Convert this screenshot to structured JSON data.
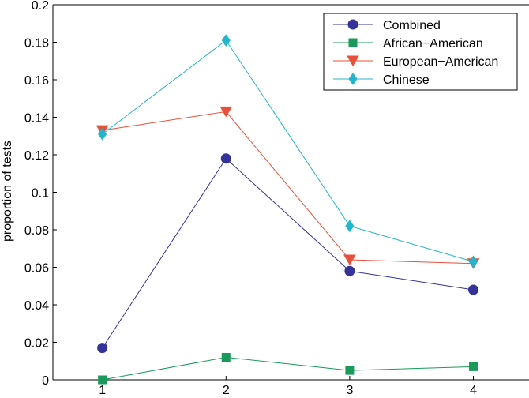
{
  "chart_data": {
    "type": "line",
    "title": "",
    "xlabel": "",
    "ylabel": "proportion of tests",
    "x": [
      1,
      2,
      3,
      4
    ],
    "xlim": [
      0.6,
      4.45
    ],
    "ylim": [
      0,
      0.2
    ],
    "xticks": [
      "1",
      "2",
      "3",
      "4"
    ],
    "yticks": [
      "0",
      "0.02",
      "0.04",
      "0.06",
      "0.08",
      "0.1",
      "0.12",
      "0.14",
      "0.16",
      "0.18",
      "0.2"
    ],
    "grid": false,
    "legend_position": "top-right",
    "series": [
      {
        "name": "Combined",
        "values": [
          0.017,
          0.118,
          0.058,
          0.048
        ],
        "color": "#33339a",
        "marker": "circle"
      },
      {
        "name": "African−American",
        "values": [
          0.0,
          0.012,
          0.005,
          0.007
        ],
        "color": "#1a9a5a",
        "marker": "square"
      },
      {
        "name": "European−American",
        "values": [
          0.133,
          0.143,
          0.064,
          0.062
        ],
        "color": "#e8503a",
        "marker": "triangle-down"
      },
      {
        "name": "Chinese",
        "values": [
          0.131,
          0.181,
          0.082,
          0.063
        ],
        "color": "#23b5cc",
        "marker": "diamond"
      }
    ]
  }
}
